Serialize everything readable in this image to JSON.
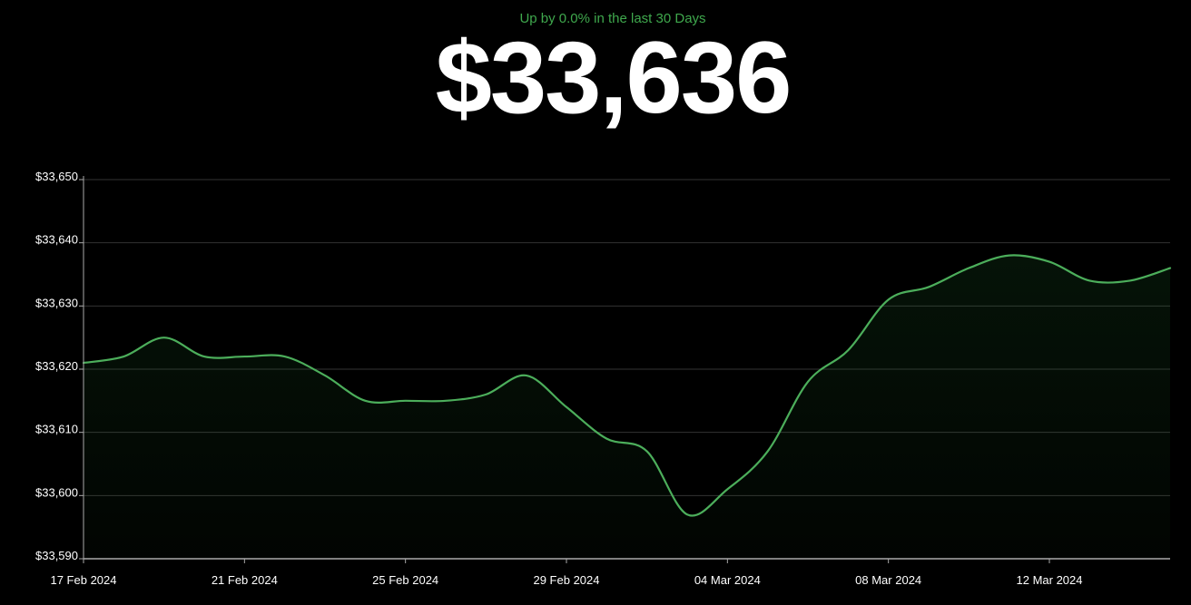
{
  "header": {
    "change_text": "Up by 0.0% in the last 30 Days",
    "balance": "$33,636"
  },
  "colors": {
    "background": "#000000",
    "accent": "#3fa84d",
    "line": "#4cae5b",
    "grid": "#333333",
    "axis": "#aaaaaa"
  },
  "chart_data": {
    "type": "area",
    "title": "",
    "xlabel": "",
    "ylabel": "",
    "ylim": [
      33590,
      33650
    ],
    "y_ticks": [
      33650,
      33640,
      33630,
      33620,
      33610,
      33600,
      33590
    ],
    "y_tick_labels": [
      "$33,650",
      "$33,640",
      "$33,630",
      "$33,620",
      "$33,610",
      "$33,600",
      "$33,590"
    ],
    "xlim": [
      "2024-02-17",
      "2024-03-15"
    ],
    "x_ticks": [
      "2024-02-17",
      "2024-02-21",
      "2024-02-25",
      "2024-02-29",
      "2024-03-04",
      "2024-03-08",
      "2024-03-12"
    ],
    "x_tick_labels": [
      "17 Feb 2024",
      "21 Feb 2024",
      "25 Feb 2024",
      "29 Feb 2024",
      "04 Mar 2024",
      "08 Mar 2024",
      "12 Mar 2024"
    ],
    "grid": true,
    "series": [
      {
        "x": [
          "2024-02-17",
          "2024-02-18",
          "2024-02-19",
          "2024-02-20",
          "2024-02-21",
          "2024-02-22",
          "2024-02-23",
          "2024-02-24",
          "2024-02-25",
          "2024-02-26",
          "2024-02-27",
          "2024-02-28",
          "2024-02-29",
          "2024-03-01",
          "2024-03-02",
          "2024-03-03",
          "2024-03-04",
          "2024-03-05",
          "2024-03-06",
          "2024-03-07",
          "2024-03-08",
          "2024-03-09",
          "2024-03-10",
          "2024-03-11",
          "2024-03-12",
          "2024-03-13",
          "2024-03-14",
          "2024-03-15"
        ],
        "values": [
          33621,
          33622,
          33625,
          33622,
          33622,
          33622,
          33619,
          33615,
          33615,
          33615,
          33616,
          33619,
          33614,
          33609,
          33607,
          33597,
          33601,
          33607,
          33618,
          33623,
          33631,
          33633,
          33636,
          33638,
          33637,
          33634,
          33634,
          33636
        ]
      }
    ]
  }
}
